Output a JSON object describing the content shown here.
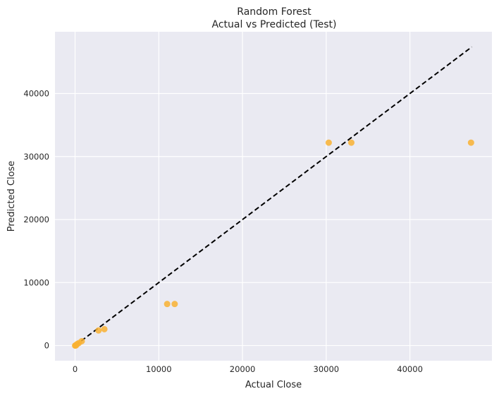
{
  "chart_data": {
    "type": "scatter",
    "title": "Random Forest",
    "subtitle": "Actual vs Predicted (Test)",
    "xlabel": "Actual Close",
    "ylabel": "Predicted Close",
    "xlim": [
      -2400,
      49800
    ],
    "ylim": [
      -2400,
      49800
    ],
    "xticks": [
      0,
      10000,
      20000,
      30000,
      40000
    ],
    "yticks": [
      0,
      10000,
      20000,
      30000,
      40000
    ],
    "xtick_labels": [
      "0",
      "10000",
      "20000",
      "30000",
      "40000"
    ],
    "ytick_labels": [
      "0",
      "10000",
      "20000",
      "30000",
      "40000"
    ],
    "grid": true,
    "background_color": "#eaeaf2",
    "point_color": "#f9b233",
    "line_color": "#000000",
    "reference_line": {
      "style": "dashed",
      "from": [
        0,
        0
      ],
      "to": [
        47400,
        47400
      ]
    },
    "points": [
      {
        "x": 10,
        "y": 0
      },
      {
        "x": 50,
        "y": 20
      },
      {
        "x": 120,
        "y": 40
      },
      {
        "x": 250,
        "y": 250
      },
      {
        "x": 450,
        "y": 400
      },
      {
        "x": 800,
        "y": 700
      },
      {
        "x": 2800,
        "y": 2400
      },
      {
        "x": 3500,
        "y": 2600
      },
      {
        "x": 11000,
        "y": 6600
      },
      {
        "x": 11900,
        "y": 6600
      },
      {
        "x": 30300,
        "y": 32200
      },
      {
        "x": 33000,
        "y": 32200
      },
      {
        "x": 47300,
        "y": 32200
      }
    ]
  }
}
